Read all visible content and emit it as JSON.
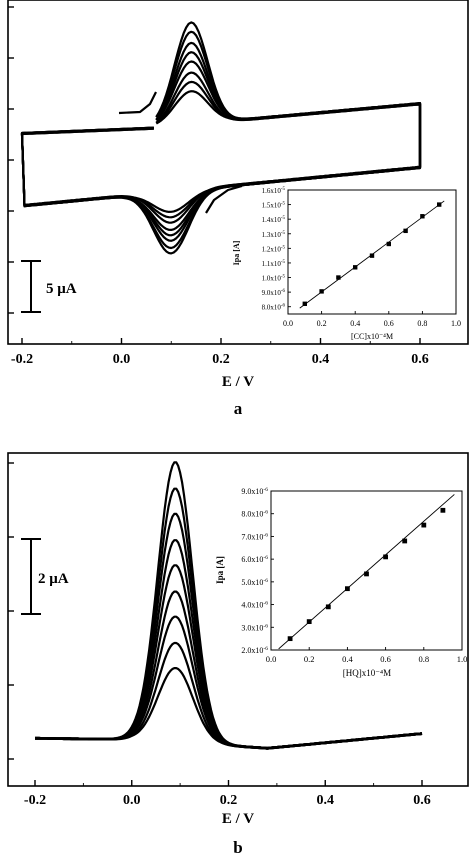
{
  "chart_data": [
    {
      "panel_label": "a",
      "type": "line",
      "xlabel": "E / V",
      "ylabel": "",
      "xlim": [
        -0.22,
        0.72
      ],
      "x_ticks": [
        -0.2,
        0.0,
        0.2,
        0.4,
        0.6
      ],
      "x_tick_labels": [
        "-0.2",
        "0.0",
        "0.2",
        "0.4",
        "0.6"
      ],
      "scale_bar": {
        "label": "5 μA",
        "value_uA": 5
      },
      "n_curves": 8,
      "anodic_peak_E": 0.14,
      "cathodic_peak_E": 0.1,
      "grid": false,
      "inset": {
        "type": "scatter",
        "xlabel": "[CC]x10⁻⁴M",
        "ylabel": "Ipa [A]",
        "xlim": [
          0.0,
          1.0
        ],
        "ylim": [
          7.5e-06,
          1.6e-05
        ],
        "x_ticks": [
          0.0,
          0.2,
          0.4,
          0.6,
          0.8,
          1.0
        ],
        "x_tick_labels": [
          "0.0",
          "0.2",
          "0.4",
          "0.6",
          "0.8",
          "1.0"
        ],
        "y_ticks": [
          8e-06,
          9e-06,
          1e-05,
          1.1e-05,
          1.2e-05,
          1.3e-05,
          1.4e-05,
          1.5e-05,
          1.6e-05
        ],
        "y_tick_mantissas": [
          "8.0x10",
          "9.0x10",
          "1.0x10",
          "1.1x10",
          "1.2x10",
          "1.3x10",
          "1.4x10",
          "1.5x10",
          "1.6x10"
        ],
        "y_tick_exponents": [
          "-6",
          "-6",
          "-5",
          "-5",
          "-5",
          "-5",
          "-5",
          "-5",
          "-5"
        ],
        "x": [
          0.1,
          0.2,
          0.3,
          0.4,
          0.5,
          0.6,
          0.7,
          0.8,
          0.9
        ],
        "y": [
          8.2e-06,
          9.05e-06,
          1e-05,
          1.07e-05,
          1.15e-05,
          1.23e-05,
          1.32e-05,
          1.42e-05,
          1.5e-05
        ],
        "fit_line": true
      }
    },
    {
      "panel_label": "b",
      "type": "line",
      "xlabel": "E / V",
      "ylabel": "",
      "xlim": [
        -0.25,
        0.7
      ],
      "x_ticks": [
        -0.2,
        0.0,
        0.2,
        0.4,
        0.6
      ],
      "x_tick_labels": [
        "-0.2",
        "0.0",
        "0.2",
        "0.4",
        "0.6"
      ],
      "scale_bar": {
        "label": "2 μA",
        "value_uA": 2
      },
      "n_curves": 9,
      "peak_E": 0.09,
      "grid": false,
      "inset": {
        "type": "scatter",
        "xlabel": "[HQ]x10⁻⁴M",
        "ylabel": "Ipa [A]",
        "xlim": [
          0.0,
          1.0
        ],
        "ylim": [
          2e-06,
          9e-06
        ],
        "x_ticks": [
          0.0,
          0.2,
          0.4,
          0.6,
          0.8,
          1.0
        ],
        "x_tick_labels": [
          "0.0",
          "0.2",
          "0.4",
          "0.6",
          "0.8",
          "1.0"
        ],
        "y_ticks": [
          2e-06,
          3e-06,
          4e-06,
          5e-06,
          6e-06,
          7e-06,
          8e-06,
          9e-06
        ],
        "y_tick_mantissas": [
          "2.0x10",
          "3.0x10",
          "4.0x10",
          "5.0x10",
          "6.0x10",
          "7.0x10",
          "8.0x10",
          "9.0x10"
        ],
        "y_tick_exponents": [
          "-6",
          "-6",
          "-6",
          "-6",
          "-6",
          "-6",
          "-6",
          "-6"
        ],
        "x": [
          0.1,
          0.2,
          0.3,
          0.4,
          0.5,
          0.6,
          0.7,
          0.8,
          0.9
        ],
        "y": [
          2.5e-06,
          3.25e-06,
          3.9e-06,
          4.7e-06,
          5.35e-06,
          6.1e-06,
          6.8e-06,
          7.5e-06,
          8.15e-06
        ],
        "fit_line": true
      }
    }
  ]
}
